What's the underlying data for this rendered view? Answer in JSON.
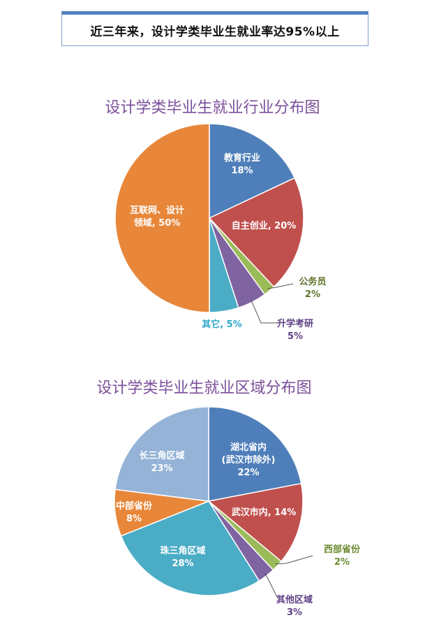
{
  "banner": {
    "text": "近三年来，设计学类毕业生就业率达95%以上"
  },
  "chart_data": [
    {
      "type": "pie",
      "title": "设计学类毕业生就业行业分布图",
      "slices": [
        {
          "name": "教育行业",
          "value": 18,
          "label": "18%",
          "color": "#4f7fba",
          "label_color": "#ffffff"
        },
        {
          "name": "自主创业",
          "value": 20,
          "label": "20%",
          "color": "#c0504d",
          "label_color": "#ffffff"
        },
        {
          "name": "公务员",
          "value": 2,
          "label": "2%",
          "color": "#9bbb59",
          "label_color": "#5f7530"
        },
        {
          "name": "升学考研",
          "value": 5,
          "label": "5%",
          "color": "#8064a2",
          "label_color": "#5e3f85"
        },
        {
          "name": "其它",
          "value": 5,
          "label": "5%",
          "color": "#4bacc6",
          "label_color": "#2ca7c9"
        },
        {
          "name": "互联网、设计领域",
          "value": 50,
          "label": "50%",
          "color": "#e8873a",
          "label_color": "#ffffff"
        }
      ]
    },
    {
      "type": "pie",
      "title": "设计学类毕业生就业区域分布图",
      "slices": [
        {
          "name": "湖北省内(武汉市除外)",
          "value": 22,
          "label": "22%",
          "color": "#4f7fba",
          "label_color": "#ffffff"
        },
        {
          "name": "武汉市内",
          "value": 14,
          "label": "14%",
          "color": "#c0504d",
          "label_color": "#ffffff"
        },
        {
          "name": "西部省份",
          "value": 2,
          "label": "2%",
          "color": "#9bbb59",
          "label_color": "#6a8a2e"
        },
        {
          "name": "其他区域",
          "value": 3,
          "label": "3%",
          "color": "#8064a2",
          "label_color": "#5e3f85"
        },
        {
          "name": "珠三角区域",
          "value": 28,
          "label": "28%",
          "color": "#4bacc6",
          "label_color": "#ffffff"
        },
        {
          "name": "中部省份",
          "value": 8,
          "label": "8%",
          "color": "#e8873a",
          "label_color": "#ffffff"
        },
        {
          "name": "长三角区域",
          "value": 23,
          "label": "23%",
          "color": "#95b3d7",
          "label_color": "#ffffff"
        }
      ]
    }
  ]
}
